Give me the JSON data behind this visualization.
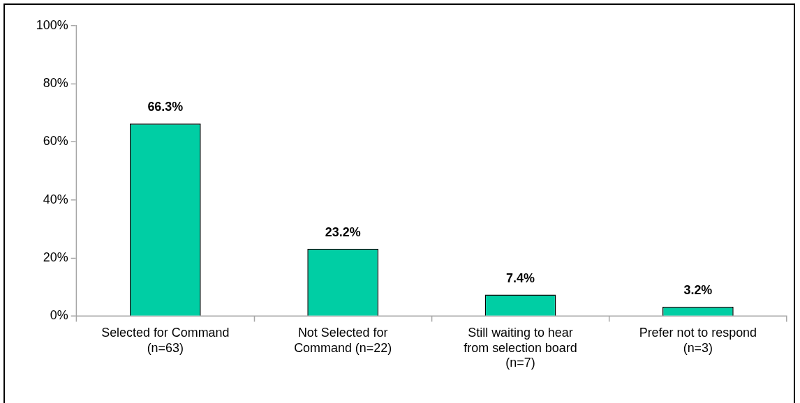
{
  "chart_data": {
    "type": "bar",
    "categories": [
      "Selected for Command (n=63)",
      "Not Selected for Command (n=22)",
      "Still waiting to hear from selection board (n=7)",
      "Prefer not to respond (n=3)"
    ],
    "values": [
      66.3,
      23.2,
      7.4,
      3.2
    ],
    "color": "#00cea4",
    "value_labels": [
      "66.3%",
      "23.2%",
      "7.4%",
      "3.2%"
    ],
    "ylim": [
      0,
      100
    ],
    "yticks": [
      {
        "value": 0,
        "label": "0%"
      },
      {
        "value": 20,
        "label": "20%"
      },
      {
        "value": 40,
        "label": "40%"
      },
      {
        "value": 60,
        "label": "60%"
      },
      {
        "value": 80,
        "label": "80%"
      },
      {
        "value": 100,
        "label": "100%"
      }
    ]
  }
}
